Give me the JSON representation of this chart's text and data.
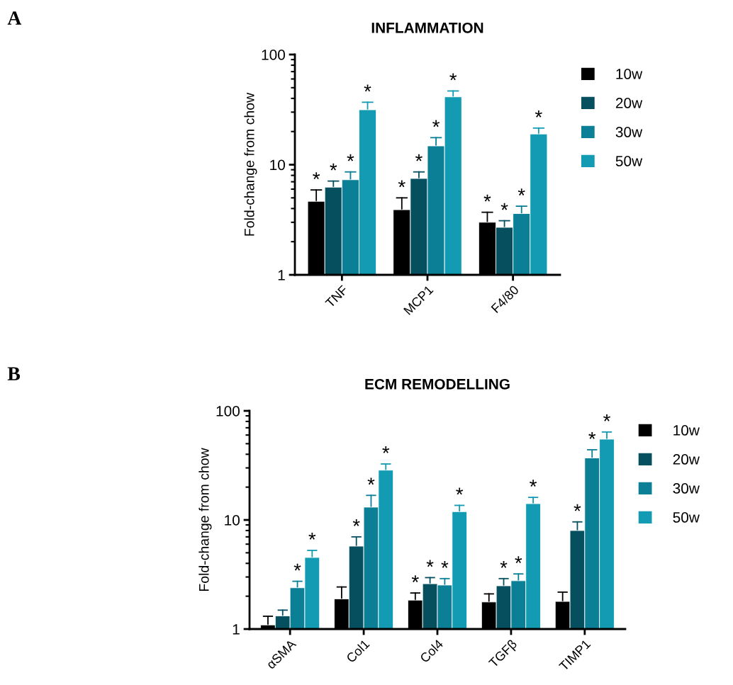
{
  "chart_data": [
    {
      "type": "bar",
      "title": "INFLAMMATION",
      "ylabel": "Fold-change from chow",
      "annotations": [
        "A"
      ],
      "categories": [
        "TNF",
        "MCP1",
        "F4/80"
      ],
      "log": "y",
      "ylim": [
        1,
        100
      ],
      "yticks": [
        1,
        10,
        100
      ],
      "legend": "top right",
      "grid": false,
      "series": [
        {
          "name": "10w",
          "color": "#000000",
          "values": [
            4.65,
            3.9,
            3.0
          ],
          "errors": [
            [
              4.65,
              5.9
            ],
            [
              3.9,
              5.0
            ],
            [
              3.0,
              3.7
            ]
          ],
          "value_labels": [
            "*",
            "*",
            "*"
          ]
        },
        {
          "name": "20w",
          "color": "#054f5f",
          "values": [
            6.25,
            7.5,
            2.7
          ],
          "errors": [
            [
              6.25,
              7.1
            ],
            [
              7.5,
              8.6
            ],
            [
              2.7,
              3.1
            ]
          ],
          "value_labels": [
            "*",
            "*",
            "*"
          ]
        },
        {
          "name": "30w",
          "color": "#0a7f95",
          "values": [
            7.3,
            14.8,
            3.6
          ],
          "errors": [
            [
              7.3,
              8.6
            ],
            [
              14.8,
              17.6
            ],
            [
              3.6,
              4.2
            ]
          ],
          "value_labels": [
            "*",
            "*",
            "*"
          ]
        },
        {
          "name": "50w",
          "color": "#129bb3",
          "values": [
            31.5,
            41.3,
            19.0
          ],
          "errors": [
            [
              31.5,
              36.9
            ],
            [
              41.3,
              46.7
            ],
            [
              19.0,
              21.5
            ]
          ],
          "value_labels": [
            "*",
            "*",
            "*"
          ]
        }
      ]
    },
    {
      "type": "bar",
      "title": "ECM REMODELLING",
      "ylabel": "Fold-change from chow",
      "annotations": [
        "B"
      ],
      "categories": [
        "αSMA",
        "Col1",
        "Col4",
        "TGFβ",
        "TIMP1"
      ],
      "log": "y",
      "ylim": [
        1,
        100
      ],
      "yticks": [
        1,
        10,
        100
      ],
      "legend": "top right",
      "grid": false,
      "series": [
        {
          "name": "10w",
          "color": "#000000",
          "values": [
            1.09,
            1.89,
            1.84,
            1.77,
            1.79
          ],
          "errors": [
            [
              1.09,
              1.31
            ],
            [
              1.89,
              2.43
            ],
            [
              1.84,
              2.14
            ],
            [
              1.77,
              2.1
            ],
            [
              1.79,
              2.18
            ]
          ],
          "value_labels": [
            null,
            null,
            "*",
            null,
            null
          ]
        },
        {
          "name": "20w",
          "color": "#054f5f",
          "values": [
            1.32,
            5.75,
            2.6,
            2.49,
            8.0
          ],
          "errors": [
            [
              1.32,
              1.49
            ],
            [
              5.75,
              7.0
            ],
            [
              2.6,
              2.96
            ],
            [
              2.49,
              2.9
            ],
            [
              8.0,
              9.6
            ]
          ],
          "value_labels": [
            null,
            "*",
            "*",
            "*",
            "*"
          ]
        },
        {
          "name": "30w",
          "color": "#0a7f95",
          "values": [
            2.39,
            13.1,
            2.53,
            2.77,
            37.0
          ],
          "errors": [
            [
              2.39,
              2.74
            ],
            [
              13.1,
              16.8
            ],
            [
              2.53,
              2.9
            ],
            [
              2.77,
              3.2
            ],
            [
              37.0,
              44.0
            ]
          ],
          "value_labels": [
            "*",
            "*",
            "*",
            "*",
            "*"
          ]
        },
        {
          "name": "50w",
          "color": "#129bb3",
          "values": [
            4.53,
            28.6,
            11.9,
            14.1,
            55.0
          ],
          "errors": [
            [
              4.53,
              5.26
            ],
            [
              28.6,
              32.6
            ],
            [
              11.9,
              13.6
            ],
            [
              14.1,
              16.1
            ],
            [
              55.0,
              64.0
            ]
          ],
          "value_labels": [
            "*",
            "*",
            "*",
            "*",
            "*"
          ]
        }
      ]
    }
  ]
}
